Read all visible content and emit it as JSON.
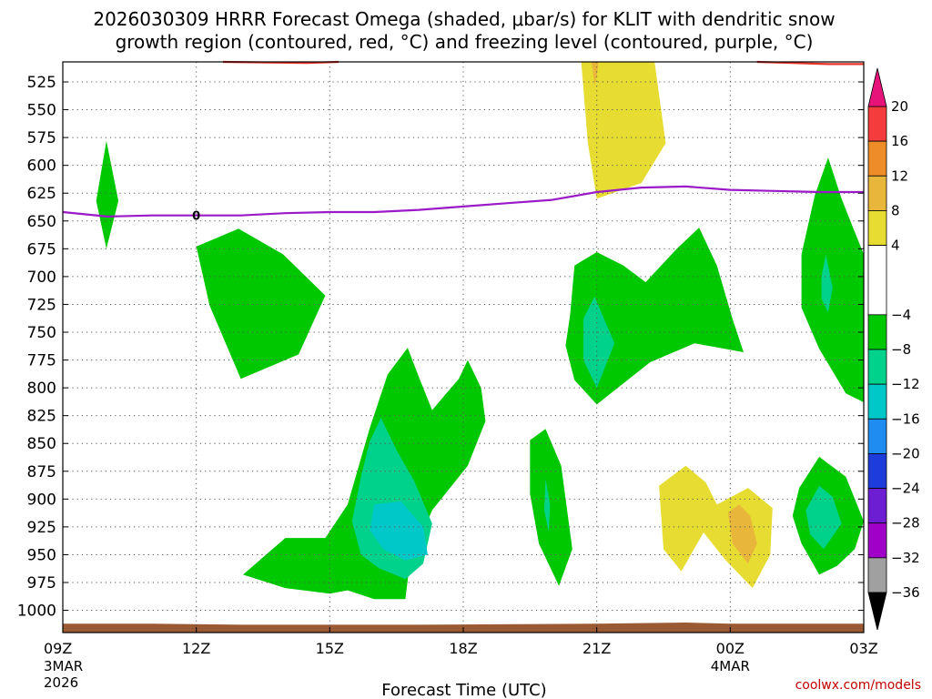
{
  "chart_data": {
    "type": "heatmap",
    "title_line1": "2026030309 HRRR Forecast Omega (shaded, μbar/s) for KLIT with dendritic snow",
    "title_line2": "growth region (contoured, red, °C) and freezing level (contoured, purple, °C)",
    "xlabel": "Forecast Time (UTC)",
    "credit": "coolwx.com/models",
    "y_ticks": [
      525,
      550,
      575,
      600,
      625,
      650,
      675,
      700,
      725,
      750,
      775,
      800,
      825,
      850,
      875,
      900,
      925,
      950,
      975,
      1000
    ],
    "x_ticks": [
      {
        "h": 0,
        "label": "09Z",
        "sub1": "3MAR",
        "sub2": "2026"
      },
      {
        "h": 3,
        "label": "12Z",
        "sub1": "",
        "sub2": ""
      },
      {
        "h": 6,
        "label": "15Z",
        "sub1": "",
        "sub2": ""
      },
      {
        "h": 9,
        "label": "18Z",
        "sub1": "",
        "sub2": ""
      },
      {
        "h": 12,
        "label": "21Z",
        "sub1": "",
        "sub2": ""
      },
      {
        "h": 15,
        "label": "00Z",
        "sub1": "4MAR",
        "sub2": ""
      },
      {
        "h": 18,
        "label": "03Z",
        "sub1": "",
        "sub2": ""
      }
    ],
    "freezing_level_label": "0",
    "colorbar": {
      "labels": [
        "20",
        "16",
        "12",
        "8",
        "4",
        "−4",
        "−8",
        "−12",
        "−16",
        "−20",
        "−24",
        "−28",
        "−32",
        "−36"
      ],
      "bands": [
        {
          "lo": 16,
          "hi": 20,
          "color": "#f43c3c"
        },
        {
          "lo": 12,
          "hi": 16,
          "color": "#ef8c2a"
        },
        {
          "lo": 8,
          "hi": 12,
          "color": "#e8b63a"
        },
        {
          "lo": 4,
          "hi": 8,
          "color": "#e6dc32"
        },
        {
          "lo": -4,
          "hi": 4,
          "color": "#ffffff"
        },
        {
          "lo": -8,
          "hi": -4,
          "color": "#00c800"
        },
        {
          "lo": -12,
          "hi": -8,
          "color": "#00d28c"
        },
        {
          "lo": -16,
          "hi": -12,
          "color": "#00c8c8"
        },
        {
          "lo": -20,
          "hi": -16,
          "color": "#1e8cf0"
        },
        {
          "lo": -24,
          "hi": -20,
          "color": "#1e3cdc"
        },
        {
          "lo": -28,
          "hi": -24,
          "color": "#6e1ed2"
        },
        {
          "lo": -32,
          "hi": -28,
          "color": "#a000c8"
        },
        {
          "lo": -36,
          "hi": -32,
          "color": "#a0a0a0"
        }
      ],
      "top_arrow_color": "#e6147a",
      "bottom_arrow_color": "#000000"
    },
    "series": [
      {
        "kind": "line",
        "color": "#9a1ac8",
        "points": [
          [
            0,
            642
          ],
          [
            1,
            646
          ],
          [
            2,
            645
          ],
          [
            3,
            645
          ],
          [
            4,
            645
          ],
          [
            5,
            643
          ],
          [
            6,
            642
          ],
          [
            7,
            642
          ],
          [
            8,
            640
          ],
          [
            9,
            637
          ],
          [
            10,
            634
          ],
          [
            11,
            631
          ],
          [
            12,
            624
          ],
          [
            13,
            620
          ],
          [
            14,
            619
          ],
          [
            15,
            622
          ],
          [
            16,
            623
          ],
          [
            17,
            624
          ],
          [
            18,
            624
          ]
        ]
      },
      {
        "kind": "line",
        "color": "#e8322a",
        "points": [
          [
            3.6,
            507
          ],
          [
            5.5,
            508
          ],
          [
            6.2,
            507
          ]
        ]
      },
      {
        "kind": "line",
        "color": "#e8322a",
        "points": [
          [
            15.6,
            507
          ],
          [
            16.4,
            508
          ],
          [
            17.2,
            509
          ],
          [
            18,
            509
          ]
        ]
      },
      {
        "kind": "fill",
        "color": "#9a5a34",
        "points": [
          [
            0,
            1012
          ],
          [
            2,
            1012
          ],
          [
            4,
            1013
          ],
          [
            8,
            1013
          ],
          [
            12,
            1012
          ],
          [
            14,
            1011
          ],
          [
            15,
            1012
          ],
          [
            18,
            1012
          ],
          [
            18,
            1020
          ],
          [
            0,
            1020
          ]
        ]
      },
      {
        "kind": "fill",
        "color": "#e6dc32",
        "points": [
          [
            11.65,
            507
          ],
          [
            13.3,
            507
          ],
          [
            13.55,
            580
          ],
          [
            13.0,
            616
          ],
          [
            12.0,
            630
          ],
          [
            11.8,
            580
          ]
        ]
      },
      {
        "kind": "fill",
        "color": "#e8b63a",
        "points": [
          [
            11.88,
            507
          ],
          [
            12.04,
            507
          ],
          [
            12.0,
            520
          ],
          [
            11.96,
            528
          ],
          [
            11.92,
            518
          ]
        ]
      },
      {
        "kind": "fill",
        "color": "#00c800",
        "points": [
          [
            0.98,
            578
          ],
          [
            1.25,
            632
          ],
          [
            0.98,
            675
          ],
          [
            0.75,
            632
          ]
        ]
      },
      {
        "kind": "fill",
        "color": "#00c800",
        "points": [
          [
            3.0,
            673
          ],
          [
            3.95,
            657
          ],
          [
            4.95,
            680
          ],
          [
            5.9,
            717
          ],
          [
            5.3,
            770
          ],
          [
            4.0,
            792
          ],
          [
            3.3,
            726
          ]
        ]
      },
      {
        "kind": "fill",
        "color": "#00c800",
        "points": [
          [
            4.05,
            968
          ],
          [
            5.0,
            935
          ],
          [
            5.9,
            935
          ],
          [
            6.4,
            905
          ],
          [
            6.9,
            836
          ],
          [
            7.3,
            788
          ],
          [
            7.75,
            764
          ],
          [
            8.0,
            790
          ],
          [
            8.3,
            820
          ],
          [
            8.6,
            806
          ],
          [
            8.9,
            792
          ],
          [
            9.1,
            775
          ],
          [
            9.4,
            800
          ],
          [
            9.5,
            830
          ],
          [
            9.1,
            870
          ],
          [
            8.3,
            910
          ],
          [
            7.8,
            957
          ],
          [
            7.7,
            990
          ],
          [
            7.0,
            990
          ],
          [
            6.4,
            982
          ],
          [
            6.0,
            985
          ],
          [
            5.0,
            980
          ]
        ]
      },
      {
        "kind": "fill",
        "color": "#00d28c",
        "points": [
          [
            6.7,
            880
          ],
          [
            6.9,
            848
          ],
          [
            7.15,
            827
          ],
          [
            7.5,
            856
          ],
          [
            7.9,
            884
          ],
          [
            8.3,
            922
          ],
          [
            8.1,
            958
          ],
          [
            7.7,
            972
          ],
          [
            7.1,
            962
          ],
          [
            6.7,
            950
          ],
          [
            6.5,
            920
          ]
        ]
      },
      {
        "kind": "fill",
        "color": "#00c8c8",
        "points": [
          [
            7.0,
            905
          ],
          [
            7.6,
            902
          ],
          [
            8.1,
            925
          ],
          [
            8.2,
            950
          ],
          [
            7.7,
            955
          ],
          [
            7.2,
            945
          ],
          [
            6.9,
            928
          ]
        ]
      },
      {
        "kind": "fill",
        "color": "#00c800",
        "points": [
          [
            11.4,
            735
          ],
          [
            11.5,
            690
          ],
          [
            12.0,
            678
          ],
          [
            12.6,
            690
          ],
          [
            13.1,
            705
          ],
          [
            13.8,
            675
          ],
          [
            14.3,
            656
          ],
          [
            14.7,
            690
          ],
          [
            15.05,
            738
          ],
          [
            15.3,
            768
          ],
          [
            14.2,
            760
          ],
          [
            13.2,
            777
          ],
          [
            12.0,
            815
          ],
          [
            11.5,
            793
          ],
          [
            11.3,
            762
          ]
        ]
      },
      {
        "kind": "fill",
        "color": "#00d28c",
        "points": [
          [
            11.7,
            738
          ],
          [
            11.95,
            718
          ],
          [
            12.4,
            760
          ],
          [
            12.0,
            800
          ],
          [
            11.7,
            775
          ]
        ]
      },
      {
        "kind": "fill",
        "color": "#00c800",
        "points": [
          [
            10.5,
            847
          ],
          [
            10.85,
            837
          ],
          [
            11.2,
            870
          ],
          [
            11.45,
            945
          ],
          [
            11.15,
            978
          ],
          [
            10.7,
            940
          ],
          [
            10.5,
            895
          ]
        ]
      },
      {
        "kind": "fill",
        "color": "#00d28c",
        "points": [
          [
            10.85,
            882
          ],
          [
            10.95,
            905
          ],
          [
            10.92,
            930
          ],
          [
            10.82,
            910
          ]
        ]
      },
      {
        "kind": "fill",
        "color": "#00c800",
        "points": [
          [
            16.6,
            680
          ],
          [
            16.9,
            627
          ],
          [
            17.2,
            593
          ],
          [
            17.5,
            630
          ],
          [
            17.8,
            660
          ],
          [
            18.0,
            680
          ],
          [
            18.0,
            813
          ],
          [
            17.6,
            805
          ],
          [
            17.0,
            765
          ],
          [
            16.6,
            728
          ]
        ]
      },
      {
        "kind": "fill",
        "color": "#00d28c",
        "points": [
          [
            17.05,
            700
          ],
          [
            17.15,
            680
          ],
          [
            17.3,
            710
          ],
          [
            17.2,
            732
          ],
          [
            17.05,
            720
          ]
        ]
      },
      {
        "kind": "fill",
        "color": "#00c800",
        "points": [
          [
            16.55,
            890
          ],
          [
            17.0,
            862
          ],
          [
            17.6,
            880
          ],
          [
            18.0,
            920
          ],
          [
            17.8,
            945
          ],
          [
            17.4,
            960
          ],
          [
            17.0,
            968
          ],
          [
            16.6,
            940
          ],
          [
            16.4,
            915
          ]
        ]
      },
      {
        "kind": "fill",
        "color": "#00d28c",
        "points": [
          [
            16.7,
            910
          ],
          [
            17.0,
            888
          ],
          [
            17.3,
            898
          ],
          [
            17.5,
            922
          ],
          [
            17.1,
            945
          ],
          [
            16.8,
            932
          ]
        ]
      },
      {
        "kind": "fill",
        "color": "#e6dc32",
        "points": [
          [
            13.4,
            888
          ],
          [
            14.0,
            870
          ],
          [
            14.45,
            885
          ],
          [
            14.7,
            905
          ],
          [
            15.4,
            890
          ],
          [
            15.95,
            908
          ],
          [
            15.9,
            950
          ],
          [
            15.5,
            980
          ],
          [
            14.9,
            955
          ],
          [
            14.4,
            930
          ],
          [
            13.9,
            965
          ],
          [
            13.5,
            945
          ]
        ]
      },
      {
        "kind": "fill",
        "color": "#e8b63a",
        "points": [
          [
            14.95,
            912
          ],
          [
            15.2,
            905
          ],
          [
            15.45,
            915
          ],
          [
            15.6,
            940
          ],
          [
            15.4,
            958
          ],
          [
            15.05,
            940
          ]
        ]
      }
    ]
  }
}
